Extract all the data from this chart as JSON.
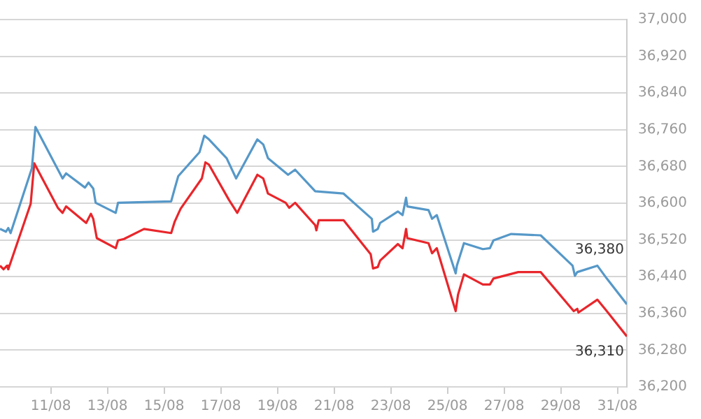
{
  "chart_data": {
    "type": "line",
    "xlim": [
      "--08-09T05:00",
      "--08-31T08:00"
    ],
    "ylim": [
      36200,
      37000
    ],
    "xticks": [
      {
        "value": "--08-11",
        "label": "11/08"
      },
      {
        "value": "--08-13",
        "label": "13/08"
      },
      {
        "value": "--08-15",
        "label": "15/08"
      },
      {
        "value": "--08-17",
        "label": "17/08"
      },
      {
        "value": "--08-19",
        "label": "19/08"
      },
      {
        "value": "--08-21",
        "label": "21/08"
      },
      {
        "value": "--08-23",
        "label": "23/08"
      },
      {
        "value": "--08-25",
        "label": "25/08"
      },
      {
        "value": "--08-27",
        "label": "27/08"
      },
      {
        "value": "--08-29",
        "label": "29/08"
      },
      {
        "value": "--08-31",
        "label": "31/08"
      }
    ],
    "yticks": [
      {
        "value": 36200,
        "label": "36,200"
      },
      {
        "value": 36280,
        "label": "36,280"
      },
      {
        "value": 36360,
        "label": "36,360"
      },
      {
        "value": 36440,
        "label": "36,440"
      },
      {
        "value": 36520,
        "label": "36,520"
      },
      {
        "value": 36600,
        "label": "36,600"
      },
      {
        "value": 36680,
        "label": "36,680"
      },
      {
        "value": 36760,
        "label": "36,760"
      },
      {
        "value": 36840,
        "label": "36,840"
      },
      {
        "value": 36920,
        "label": "36,920"
      },
      {
        "value": 37000,
        "label": "37,000"
      }
    ],
    "grid": "y",
    "legend": false,
    "marker": "none",
    "line_style": "solid",
    "annotations": [
      "36,380",
      "36,310"
    ],
    "series": [
      {
        "color": "#5698c8",
        "x": [
          "--08-09T05:00",
          "--08-09T10:00",
          "--08-09T12:00",
          "--08-09T14:00",
          "--08-10T08:00",
          "--08-10T11:00",
          "--08-11T10:00",
          "--08-11T13:00",
          "--08-12T05:00",
          "--08-12T08:00",
          "--08-12T12:00",
          "--08-12T14:00",
          "--08-13T07:00",
          "--08-13T09:00",
          "--08-15T06:00",
          "--08-15T09:00",
          "--08-15T12:00",
          "--08-16T06:00",
          "--08-16T10:00",
          "--08-16T14:00",
          "--08-17T05:00",
          "--08-17T13:00",
          "--08-18T07:00",
          "--08-18T12:00",
          "--08-18T16:00",
          "--08-19T09:00",
          "--08-19T15:00",
          "--08-20T08:00",
          "--08-21T08:00",
          "--08-22T08:00",
          "--08-22T09:00",
          "--08-22T13:00",
          "--08-22T15:00",
          "--08-23T06:00",
          "--08-23T10:00",
          "--08-23T13:00",
          "--08-23T14:00",
          "--08-24T08:00",
          "--08-24T11:00",
          "--08-24T15:00",
          "--08-25T07:00",
          "--08-25T08:00",
          "--08-25T14:00",
          "--08-26T06:00",
          "--08-26T12:00",
          "--08-26T15:00",
          "--08-27T06:00",
          "--08-28T07:00",
          "--08-29T10:00",
          "--08-29T12:00",
          "--08-29T14:00",
          "--08-30T07:00",
          "--08-30T15:00",
          "--08-31T08:00"
        ],
        "values": [
          36544,
          36538,
          36546,
          36535,
          36676,
          36766,
          36654,
          36665,
          36634,
          36645,
          36632,
          36601,
          36579,
          36601,
          36604,
          36632,
          36659,
          36711,
          36747,
          36739,
          36698,
          36654,
          36739,
          36728,
          36698,
          36662,
          36673,
          36626,
          36621,
          36566,
          36538,
          36544,
          36557,
          36582,
          36574,
          36612,
          36593,
          36585,
          36566,
          36574,
          36447,
          36464,
          36513,
          36500,
          36502,
          36519,
          36533,
          36530,
          36464,
          36442,
          36450,
          36464,
          36436,
          36380
        ]
      },
      {
        "color": "#e8262b",
        "x": [
          "--08-09T05:00",
          "--08-09T08:00",
          "--08-09T11:00",
          "--08-09T12:00",
          "--08-10T07:00",
          "--08-10T10:00",
          "--08-11T06:00",
          "--08-11T10:00",
          "--08-11T13:00",
          "--08-12T06:00",
          "--08-12T10:00",
          "--08-12T12:00",
          "--08-12T15:00",
          "--08-13T07:00",
          "--08-13T09:00",
          "--08-13T14:00",
          "--08-14T07:00",
          "--08-15T06:00",
          "--08-15T09:00",
          "--08-15T14:00",
          "--08-16T08:00",
          "--08-16T11:00",
          "--08-16T14:00",
          "--08-17T07:00",
          "--08-17T14:00",
          "--08-18T07:00",
          "--08-18T12:00",
          "--08-18T16:00",
          "--08-19T07:00",
          "--08-19T10:00",
          "--08-19T15:00",
          "--08-20T08:00",
          "--08-20T09:00",
          "--08-20T11:00",
          "--08-21T08:00",
          "--08-22T07:00",
          "--08-22T09:00",
          "--08-22T13:00",
          "--08-22T15:00",
          "--08-23T06:00",
          "--08-23T10:00",
          "--08-23T13:00",
          "--08-23T14:00",
          "--08-24T08:00",
          "--08-24T11:00",
          "--08-24T15:00",
          "--08-25T07:00",
          "--08-25T09:00",
          "--08-25T14:00",
          "--08-26T06:00",
          "--08-26T12:00",
          "--08-26T15:00",
          "--08-27T12:00",
          "--08-28T07:00",
          "--08-29T11:00",
          "--08-29T14:00",
          "--08-29T15:00",
          "--08-30T07:00",
          "--08-30T15:00",
          "--08-31T08:00"
        ],
        "values": [
          36464,
          36456,
          36464,
          36456,
          36599,
          36687,
          36590,
          36579,
          36593,
          36557,
          36577,
          36566,
          36524,
          36502,
          36519,
          36522,
          36544,
          36535,
          36560,
          36588,
          36654,
          36689,
          36684,
          36607,
          36579,
          36662,
          36654,
          36621,
          36601,
          36590,
          36601,
          36552,
          36541,
          36563,
          36563,
          36489,
          36458,
          36461,
          36475,
          36511,
          36502,
          36544,
          36524,
          36513,
          36491,
          36502,
          36365,
          36401,
          36445,
          36423,
          36423,
          36436,
          36450,
          36450,
          36365,
          36370,
          36362,
          36390,
          36365,
          36310
        ]
      }
    ]
  }
}
